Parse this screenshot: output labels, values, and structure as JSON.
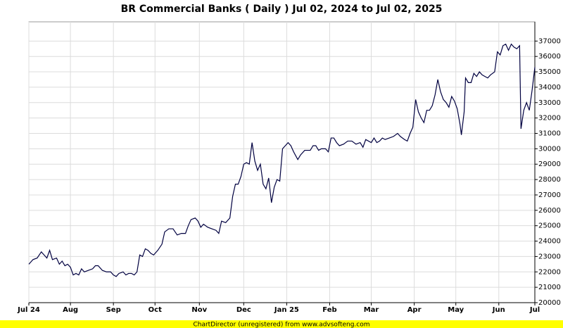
{
  "chart_data": {
    "type": "line",
    "title": "BR Commercial Banks ( Daily ) Jul 02, 2024 to Jul 02, 2025",
    "footer": "ChartDirector (unregistered) from www.advsofteng.com",
    "xlim": [
      0,
      365
    ],
    "xticks": [
      {
        "value": 0,
        "label": "Jul 24"
      },
      {
        "value": 30,
        "label": "Aug"
      },
      {
        "value": 61,
        "label": "Sep"
      },
      {
        "value": 91,
        "label": "Oct"
      },
      {
        "value": 123,
        "label": "Nov"
      },
      {
        "value": 155,
        "label": "Dec"
      },
      {
        "value": 186,
        "label": "Jan 25"
      },
      {
        "value": 217,
        "label": "Feb"
      },
      {
        "value": 247,
        "label": "Mar"
      },
      {
        "value": 278,
        "label": "Apr"
      },
      {
        "value": 308,
        "label": "May"
      },
      {
        "value": 339,
        "label": "Jun"
      },
      {
        "value": 365,
        "label": "Jul"
      }
    ],
    "ylim": [
      20000,
      38250
    ],
    "yticks": [
      20000,
      21000,
      22000,
      23000,
      24000,
      25000,
      26000,
      27000,
      28000,
      29000,
      30000,
      31000,
      32000,
      33000,
      34000,
      35000,
      36000,
      37000
    ],
    "grid": true,
    "x": [
      0,
      3,
      6,
      9,
      11,
      13,
      15,
      17,
      20,
      22,
      24,
      26,
      28,
      30,
      32,
      34,
      36,
      38,
      40,
      43,
      46,
      48,
      50,
      53,
      56,
      59,
      61,
      63,
      65,
      68,
      70,
      72,
      74,
      76,
      78,
      80,
      82,
      84,
      86,
      88,
      90,
      93,
      96,
      98,
      101,
      104,
      107,
      110,
      113,
      115,
      117,
      120,
      122,
      124,
      126,
      129,
      132,
      135,
      137,
      139,
      142,
      145,
      147,
      149,
      151,
      153,
      155,
      157,
      159,
      161,
      163,
      165,
      167,
      169,
      171,
      173,
      175,
      177,
      179,
      181,
      183,
      185,
      187,
      189,
      191,
      194,
      196,
      199,
      203,
      205,
      207,
      209,
      211,
      214,
      216,
      218,
      220,
      222,
      224,
      227,
      230,
      233,
      236,
      239,
      241,
      243,
      245,
      247,
      249,
      251,
      253,
      255,
      257,
      260,
      263,
      266,
      268,
      271,
      273,
      275,
      277,
      279,
      281,
      283,
      285,
      287,
      289,
      291,
      293,
      295,
      297,
      299,
      301,
      303,
      305,
      307,
      309,
      311,
      312,
      314,
      315,
      317,
      319,
      321,
      323,
      325,
      327,
      329,
      331,
      333,
      336,
      338,
      340,
      342,
      344,
      346,
      348,
      350,
      352,
      354,
      355,
      357,
      359,
      361,
      363,
      365
    ],
    "series": [
      {
        "name": "BR Commercial Banks",
        "color": "#000040",
        "values": [
          22500,
          22800,
          22900,
          23300,
          23100,
          22900,
          23400,
          22800,
          22900,
          22500,
          22700,
          22400,
          22500,
          22300,
          21800,
          21900,
          21800,
          22200,
          22000,
          22100,
          22200,
          22400,
          22400,
          22100,
          22000,
          22000,
          21800,
          21700,
          21900,
          22000,
          21800,
          21900,
          21900,
          21800,
          22000,
          23100,
          23000,
          23500,
          23400,
          23200,
          23100,
          23400,
          23800,
          24600,
          24800,
          24800,
          24400,
          24500,
          24500,
          25000,
          25400,
          25500,
          25300,
          24900,
          25100,
          24900,
          24800,
          24700,
          24500,
          25300,
          25200,
          25500,
          26900,
          27700,
          27700,
          28200,
          29000,
          29100,
          29000,
          30400,
          29200,
          28600,
          29000,
          27700,
          27400,
          28100,
          26500,
          27500,
          28000,
          27900,
          30000,
          30200,
          30400,
          30200,
          29800,
          29300,
          29600,
          29900,
          29900,
          30200,
          30200,
          29900,
          30000,
          30000,
          29800,
          30700,
          30700,
          30400,
          30200,
          30300,
          30500,
          30500,
          30300,
          30400,
          30100,
          30600,
          30500,
          30400,
          30700,
          30400,
          30500,
          30700,
          30600,
          30700,
          30800,
          31000,
          30800,
          30600,
          30500,
          31000,
          31400,
          33200,
          32400,
          32000,
          31700,
          32500,
          32500,
          32800,
          33500,
          34500,
          33700,
          33200,
          33000,
          32700,
          33400,
          33100,
          32600,
          31600,
          30900,
          32400,
          34600,
          34300,
          34300,
          34900,
          34700,
          35000,
          34800,
          34700,
          34600,
          34800,
          35000,
          36300,
          36100,
          36700,
          36800,
          36400,
          36800,
          36600,
          36500,
          36700,
          31300,
          32500,
          33000,
          32500,
          33800,
          35300
        ]
      }
    ]
  }
}
